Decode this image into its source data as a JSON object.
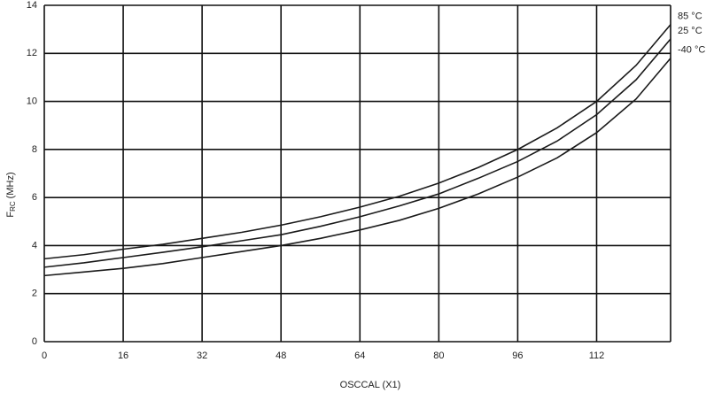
{
  "chart_data": {
    "type": "line",
    "x_label": "OSCCAL (X1)",
    "y_label": [
      "F",
      "RC",
      "(MHz)"
    ],
    "x": [
      0,
      8,
      16,
      24,
      32,
      40,
      48,
      56,
      64,
      72,
      80,
      88,
      96,
      104,
      112,
      120,
      127
    ],
    "series": [
      {
        "name": "85 °C",
        "color": "#1a1a1a",
        "values": [
          3.45,
          3.62,
          3.85,
          4.05,
          4.3,
          4.55,
          4.85,
          5.2,
          5.6,
          6.05,
          6.6,
          7.25,
          8.0,
          8.9,
          10.0,
          11.5,
          13.2
        ]
      },
      {
        "name": "25 °C",
        "color": "#1a1a1a",
        "values": [
          3.1,
          3.28,
          3.5,
          3.72,
          3.95,
          4.2,
          4.45,
          4.8,
          5.2,
          5.65,
          6.15,
          6.8,
          7.5,
          8.35,
          9.45,
          10.9,
          12.6
        ]
      },
      {
        "name": "-40 °C",
        "color": "#1a1a1a",
        "values": [
          2.75,
          2.9,
          3.05,
          3.25,
          3.5,
          3.75,
          4.0,
          4.3,
          4.65,
          5.05,
          5.55,
          6.15,
          6.85,
          7.65,
          8.7,
          10.1,
          11.8
        ]
      }
    ],
    "xlim": [
      0,
      127
    ],
    "xticks": [
      0,
      16,
      32,
      48,
      64,
      80,
      96,
      112
    ],
    "ylim": [
      0,
      14
    ],
    "yticks": [
      0,
      2,
      4,
      6,
      8,
      10,
      12,
      14
    ],
    "grid": true
  }
}
